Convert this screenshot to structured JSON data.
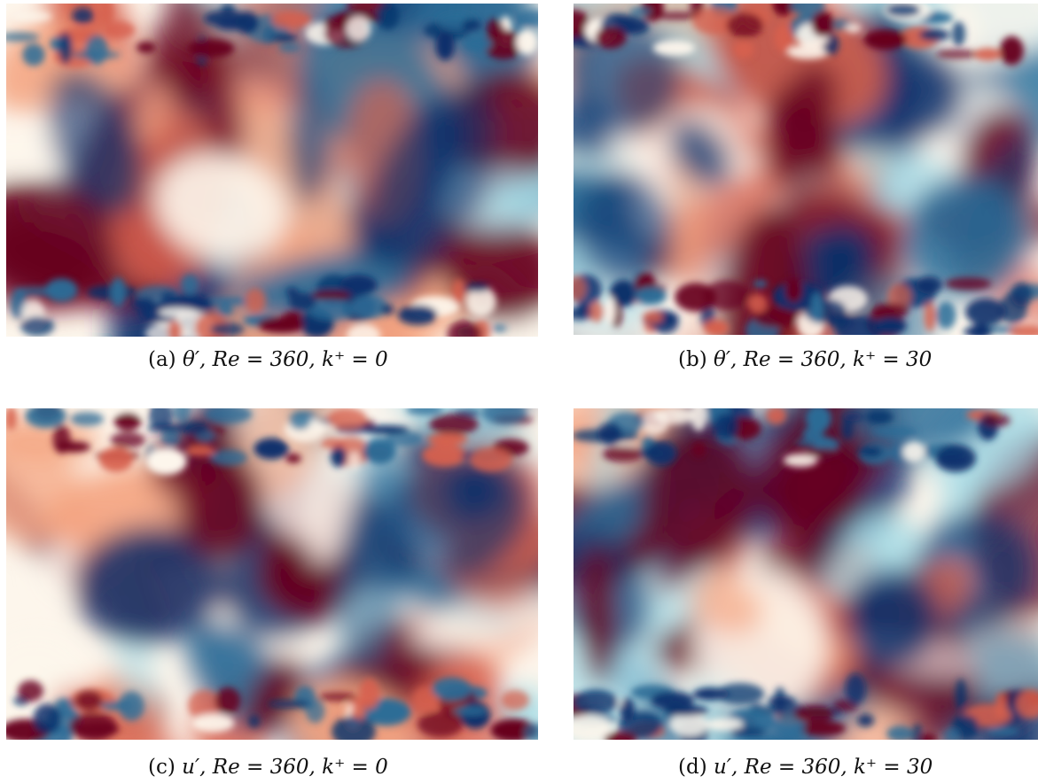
{
  "figure": {
    "panels": [
      {
        "id": "a",
        "tag": "(a)",
        "expr": "θ′, Re = 360, k⁺ = 0",
        "seed": 11
      },
      {
        "id": "b",
        "tag": "(b)",
        "expr": "θ′, Re = 360, k⁺ = 30",
        "seed": 23
      },
      {
        "id": "c",
        "tag": "(c)",
        "expr": "u′, Re = 360, k⁺ = 0",
        "seed": 37
      },
      {
        "id": "d",
        "tag": "(d)",
        "expr": "u′, Re = 360, k⁺ = 30",
        "seed": 53
      }
    ],
    "colormap": {
      "negative_strong": "#08306b",
      "negative_mid": "#2b6c97",
      "negative_light": "#a8dce6",
      "neutral": "#fdf6ec",
      "positive_light": "#f4a582",
      "positive_mid": "#d6604d",
      "positive_strong": "#67001f"
    }
  }
}
